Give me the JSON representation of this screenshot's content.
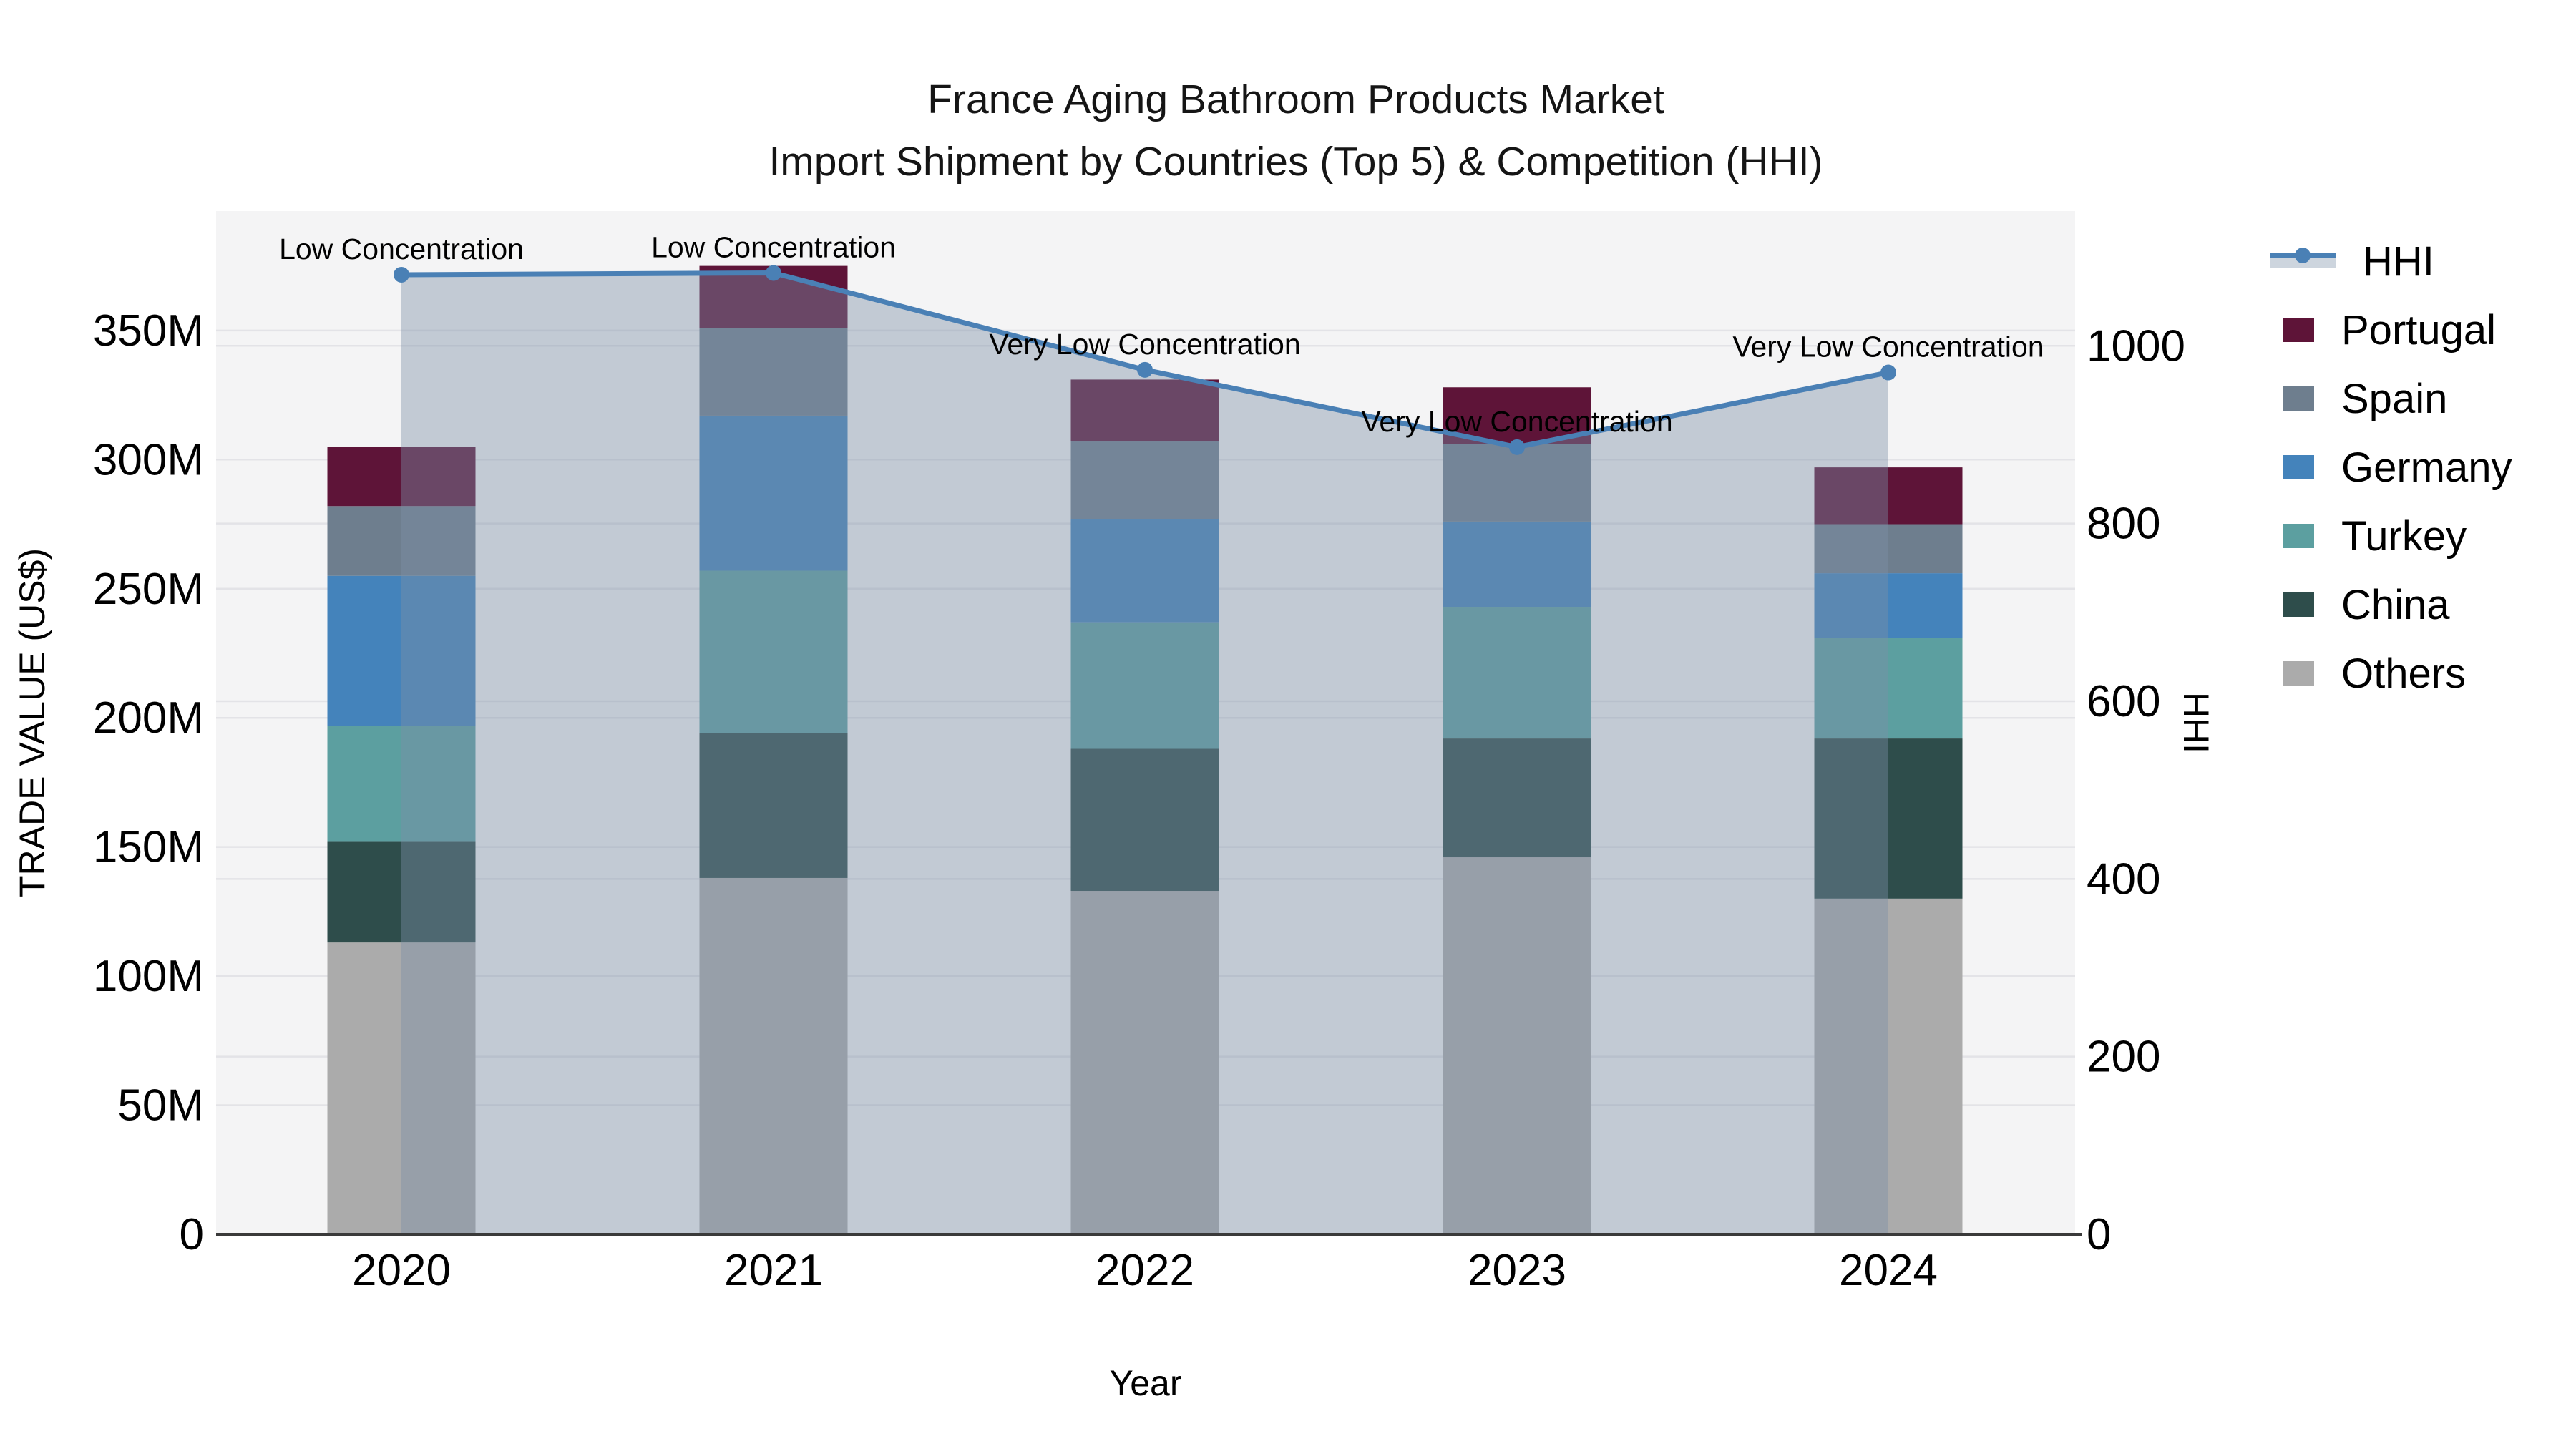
{
  "title": {
    "line1": "France Aging Bathroom Products Market",
    "line2": "Import Shipment by Countries (Top 5) & Competition (HHI)"
  },
  "axes": {
    "left": {
      "title": "TRADE VALUE (US$)",
      "tick_labels": [
        "0",
        "50M",
        "100M",
        "150M",
        "200M",
        "250M",
        "300M",
        "350M"
      ],
      "tick_values": [
        0,
        50,
        100,
        150,
        200,
        250,
        300,
        350
      ],
      "unit": "million US$"
    },
    "right": {
      "title": "HHI",
      "tick_labels": [
        "0",
        "200",
        "400",
        "600",
        "800",
        "1000"
      ],
      "tick_values": [
        0,
        200,
        400,
        600,
        800,
        1000
      ]
    },
    "x": {
      "title": "Year",
      "categories": [
        "2020",
        "2021",
        "2022",
        "2023",
        "2024"
      ]
    }
  },
  "chart_data": {
    "type": "bar",
    "subtype": "stacked-bars-with-line-overlay",
    "categories": [
      "2020",
      "2021",
      "2022",
      "2023",
      "2024"
    ],
    "stack_order_bottom_to_top": [
      "Others",
      "China",
      "Turkey",
      "Germany",
      "Spain",
      "Portugal"
    ],
    "series": [
      {
        "name": "Others",
        "values": [
          113,
          138,
          133,
          146,
          130
        ],
        "color": "#ABABAB"
      },
      {
        "name": "China",
        "values": [
          39,
          56,
          55,
          46,
          62
        ],
        "color": "#2E4D4B"
      },
      {
        "name": "Turkey",
        "values": [
          45,
          63,
          49,
          51,
          39
        ],
        "color": "#5C9FA0"
      },
      {
        "name": "Germany",
        "values": [
          58,
          60,
          40,
          33,
          25
        ],
        "color": "#4483BB"
      },
      {
        "name": "Spain",
        "values": [
          27,
          34,
          30,
          30,
          19
        ],
        "color": "#6E7E8E"
      },
      {
        "name": "Portugal",
        "values": [
          23,
          24,
          24,
          22,
          22
        ],
        "color": "#5E1438"
      }
    ],
    "bar_totals": [
      305,
      375,
      331,
      328,
      297
    ],
    "line_series": {
      "name": "HHI",
      "values": [
        1080,
        1082,
        973,
        886,
        970
      ],
      "color": "#4A80B5",
      "area_fill_color": "#7C8FA6",
      "area_fill_alpha": 0.42,
      "axis": "right"
    },
    "annotations": [
      {
        "category": "2020",
        "text": "Low Concentration"
      },
      {
        "category": "2021",
        "text": "Low Concentration"
      },
      {
        "category": "2022",
        "text": "Very Low Concentration"
      },
      {
        "category": "2023",
        "text": "Very Low Concentration"
      },
      {
        "category": "2024",
        "text": "Very Low Concentration"
      }
    ],
    "ylim_left_millions": [
      0,
      396
    ],
    "ylim_right": [
      0,
      1151
    ],
    "grid": true,
    "legend_position": "right"
  },
  "legend": {
    "items": [
      {
        "label": "HHI",
        "type": "line",
        "color": "#4A80B5",
        "band_color": "#CDD5DE"
      },
      {
        "label": "Portugal",
        "type": "patch",
        "color": "#5E1438"
      },
      {
        "label": "Spain",
        "type": "patch",
        "color": "#6E7E8E"
      },
      {
        "label": "Germany",
        "type": "patch",
        "color": "#4483BB"
      },
      {
        "label": "Turkey",
        "type": "patch",
        "color": "#5C9FA0"
      },
      {
        "label": "China",
        "type": "patch",
        "color": "#2E4D4B"
      },
      {
        "label": "Others",
        "type": "patch",
        "color": "#ABABAB"
      }
    ]
  },
  "colors": {
    "figure_background": "#FFFFFF",
    "plot_background": "#F4F4F5",
    "gridline": "#E3E3E7",
    "axis_line": "#3A3A3A",
    "text": "#000000",
    "title_text": "#151515"
  }
}
